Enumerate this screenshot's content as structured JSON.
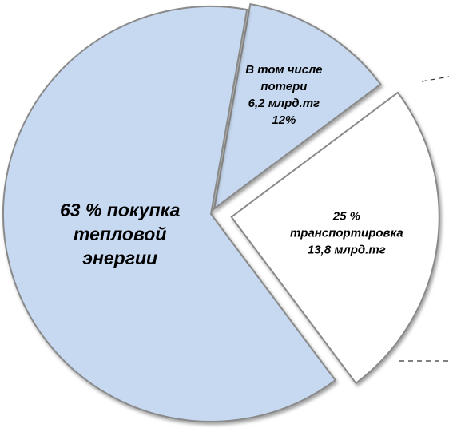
{
  "chart_data": {
    "type": "pie",
    "values": [
      63,
      12,
      25
    ],
    "value_labels": [
      [
        "63 % покупка",
        "тепловой",
        "энергии"
      ],
      [
        "В том числе",
        "потери",
        "6,2 млрд.тг",
        "12%"
      ],
      [
        "25 %",
        "транспортировка",
        "13,8 млрд.тг"
      ]
    ],
    "colors": [
      "#c6d9f1",
      "#c6d9f1",
      "#ffffff"
    ]
  }
}
